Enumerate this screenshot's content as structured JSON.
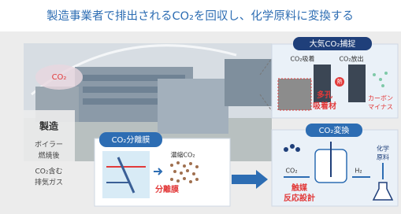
{
  "title": "製造事業者で排出されるCO₂を回収し、化学原料に変換する",
  "factory": {
    "co2_label": "CO₂",
    "name": "製造",
    "lines": [
      "ボイラー",
      "燃焼後",
      "CO₂含む",
      "排気ガス"
    ]
  },
  "separation": {
    "header": "CO₂分離膜",
    "concentrated": "濃縮CO₂",
    "membrane": "分離膜"
  },
  "capture": {
    "header": "大気CO₂捕捉",
    "adsorb": "CO₂吸着",
    "release": "CO₂放出",
    "heat": "熱",
    "material": [
      "多孔",
      "吸着材"
    ],
    "result": [
      "カーボン",
      "マイナス"
    ]
  },
  "conversion": {
    "header": "CO₂変換",
    "input1": "CO₂",
    "input2": "H₂",
    "product": [
      "化学",
      "原料"
    ],
    "design": [
      "触媒",
      "反応設計"
    ]
  }
}
